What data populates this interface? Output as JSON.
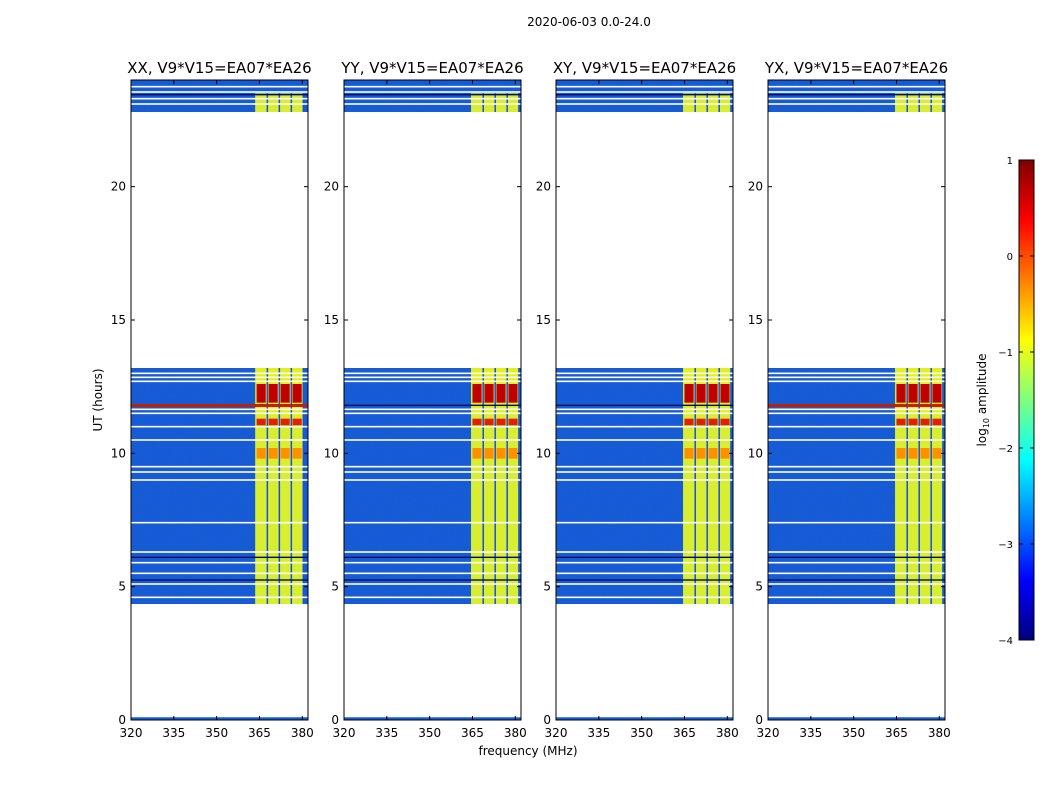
{
  "suptitle": "2020-06-03 0.0-24.0",
  "colormap": [
    "#00007f",
    "#0000ff",
    "#007fff",
    "#00ffff",
    "#7fff7f",
    "#ffff00",
    "#ff7f00",
    "#ff0000",
    "#7f0000"
  ],
  "chart_data": [
    {
      "type": "heatmap",
      "title": "XX, V9*V15=EA07*EA26",
      "ylabel": "UT (hours)",
      "xlabel": "",
      "xlim": [
        320,
        382
      ],
      "ylim": [
        0,
        24
      ],
      "xticks": [
        "320",
        "335",
        "350",
        "365",
        "380"
      ],
      "yticks": [
        "0",
        "5",
        "10",
        "15",
        "20"
      ]
    },
    {
      "type": "heatmap",
      "title": "YY, V9*V15=EA07*EA26",
      "ylabel": "",
      "xlabel": "frequency (MHz)",
      "xlim": [
        320,
        382
      ],
      "ylim": [
        0,
        24
      ],
      "xticks": [
        "320",
        "335",
        "350",
        "365",
        "380"
      ],
      "yticks": [
        "0",
        "5",
        "10",
        "15",
        "20"
      ]
    },
    {
      "type": "heatmap",
      "title": "XY, V9*V15=EA07*EA26",
      "ylabel": "",
      "xlabel": "",
      "xlim": [
        320,
        382
      ],
      "ylim": [
        0,
        24
      ],
      "xticks": [
        "320",
        "335",
        "350",
        "365",
        "380"
      ],
      "yticks": [
        "0",
        "5",
        "10",
        "15",
        "20"
      ]
    },
    {
      "type": "heatmap",
      "title": "YX, V9*V15=EA07*EA26",
      "ylabel": "",
      "xlabel": "",
      "xlim": [
        320,
        382
      ],
      "ylim": [
        0,
        24
      ],
      "xticks": [
        "320",
        "335",
        "350",
        "365",
        "380"
      ],
      "yticks": [
        "0",
        "5",
        "10",
        "15",
        "20"
      ]
    }
  ],
  "colorbar": {
    "label_prefix": "log",
    "label_sub": "10",
    "label_suffix": " amplitude",
    "min": -4,
    "max": 1,
    "ticks": [
      "1",
      "0",
      "−1",
      "−2",
      "−3",
      "−4"
    ]
  }
}
